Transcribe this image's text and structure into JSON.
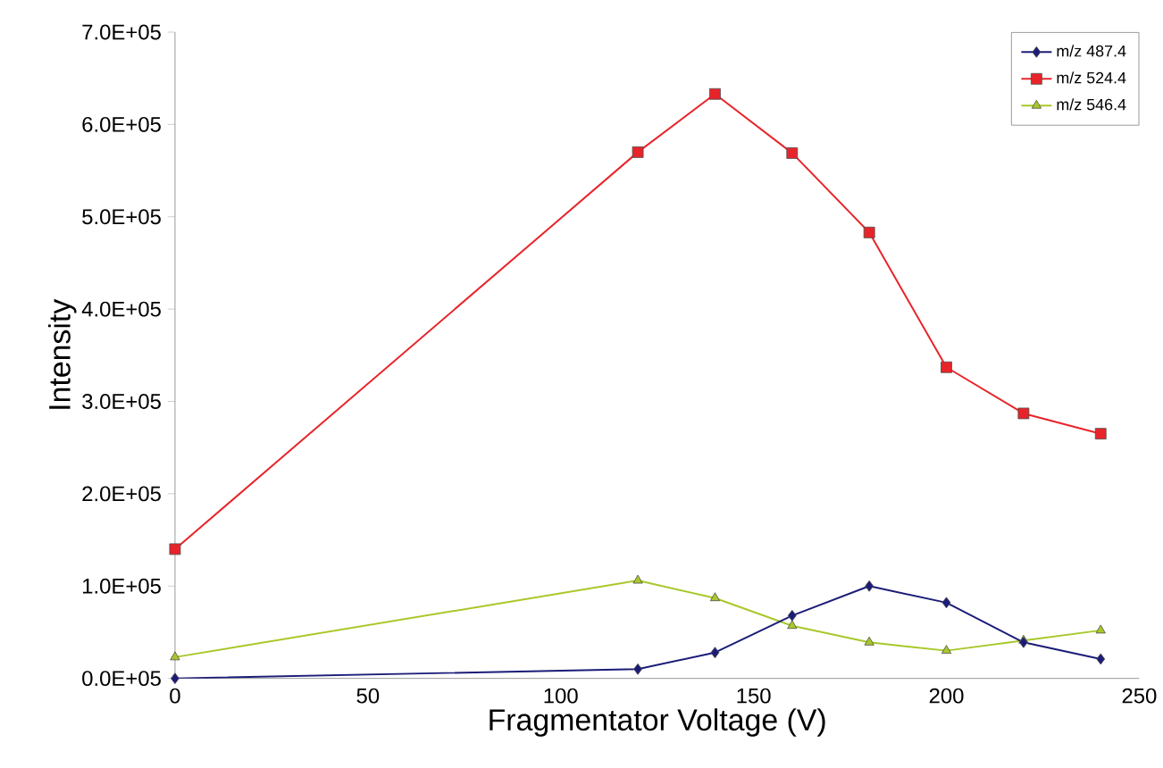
{
  "chart_data": {
    "type": "line",
    "xlabel": "Fragmentator Voltage (V)",
    "ylabel": "Intensity",
    "x": [
      0,
      120,
      140,
      160,
      180,
      200,
      220,
      240
    ],
    "series": [
      {
        "name": "m/z 487.4",
        "color": "#1c1c78",
        "marker": "diamond",
        "values": [
          0,
          10000,
          28000,
          68000,
          100000,
          82000,
          39000,
          21000
        ]
      },
      {
        "name": "m/z 524.4",
        "color": "#e8242a",
        "marker": "square",
        "values": [
          140000,
          570000,
          633000,
          569000,
          483000,
          337000,
          287000,
          265000
        ]
      },
      {
        "name": "m/z 546.4",
        "color": "#a8c82a",
        "marker": "triangle",
        "values": [
          23000,
          106000,
          87000,
          57000,
          39000,
          30000,
          41000,
          52000
        ]
      }
    ],
    "xlim": [
      0,
      250
    ],
    "xticks": [
      0,
      50,
      100,
      150,
      200,
      250
    ],
    "ylim": [
      0,
      700000
    ],
    "yticks": [
      {
        "value": 0,
        "label": "0.0E+05"
      },
      {
        "value": 100000,
        "label": "1.0E+05"
      },
      {
        "value": 200000,
        "label": "2.0E+05"
      },
      {
        "value": 300000,
        "label": "3.0E+05"
      },
      {
        "value": 400000,
        "label": "4.0E+05"
      },
      {
        "value": 500000,
        "label": "5.0E+05"
      },
      {
        "value": 600000,
        "label": "6.0E+05"
      },
      {
        "value": 700000,
        "label": "7.0E+05"
      }
    ],
    "grid": false,
    "legend": "top right"
  }
}
